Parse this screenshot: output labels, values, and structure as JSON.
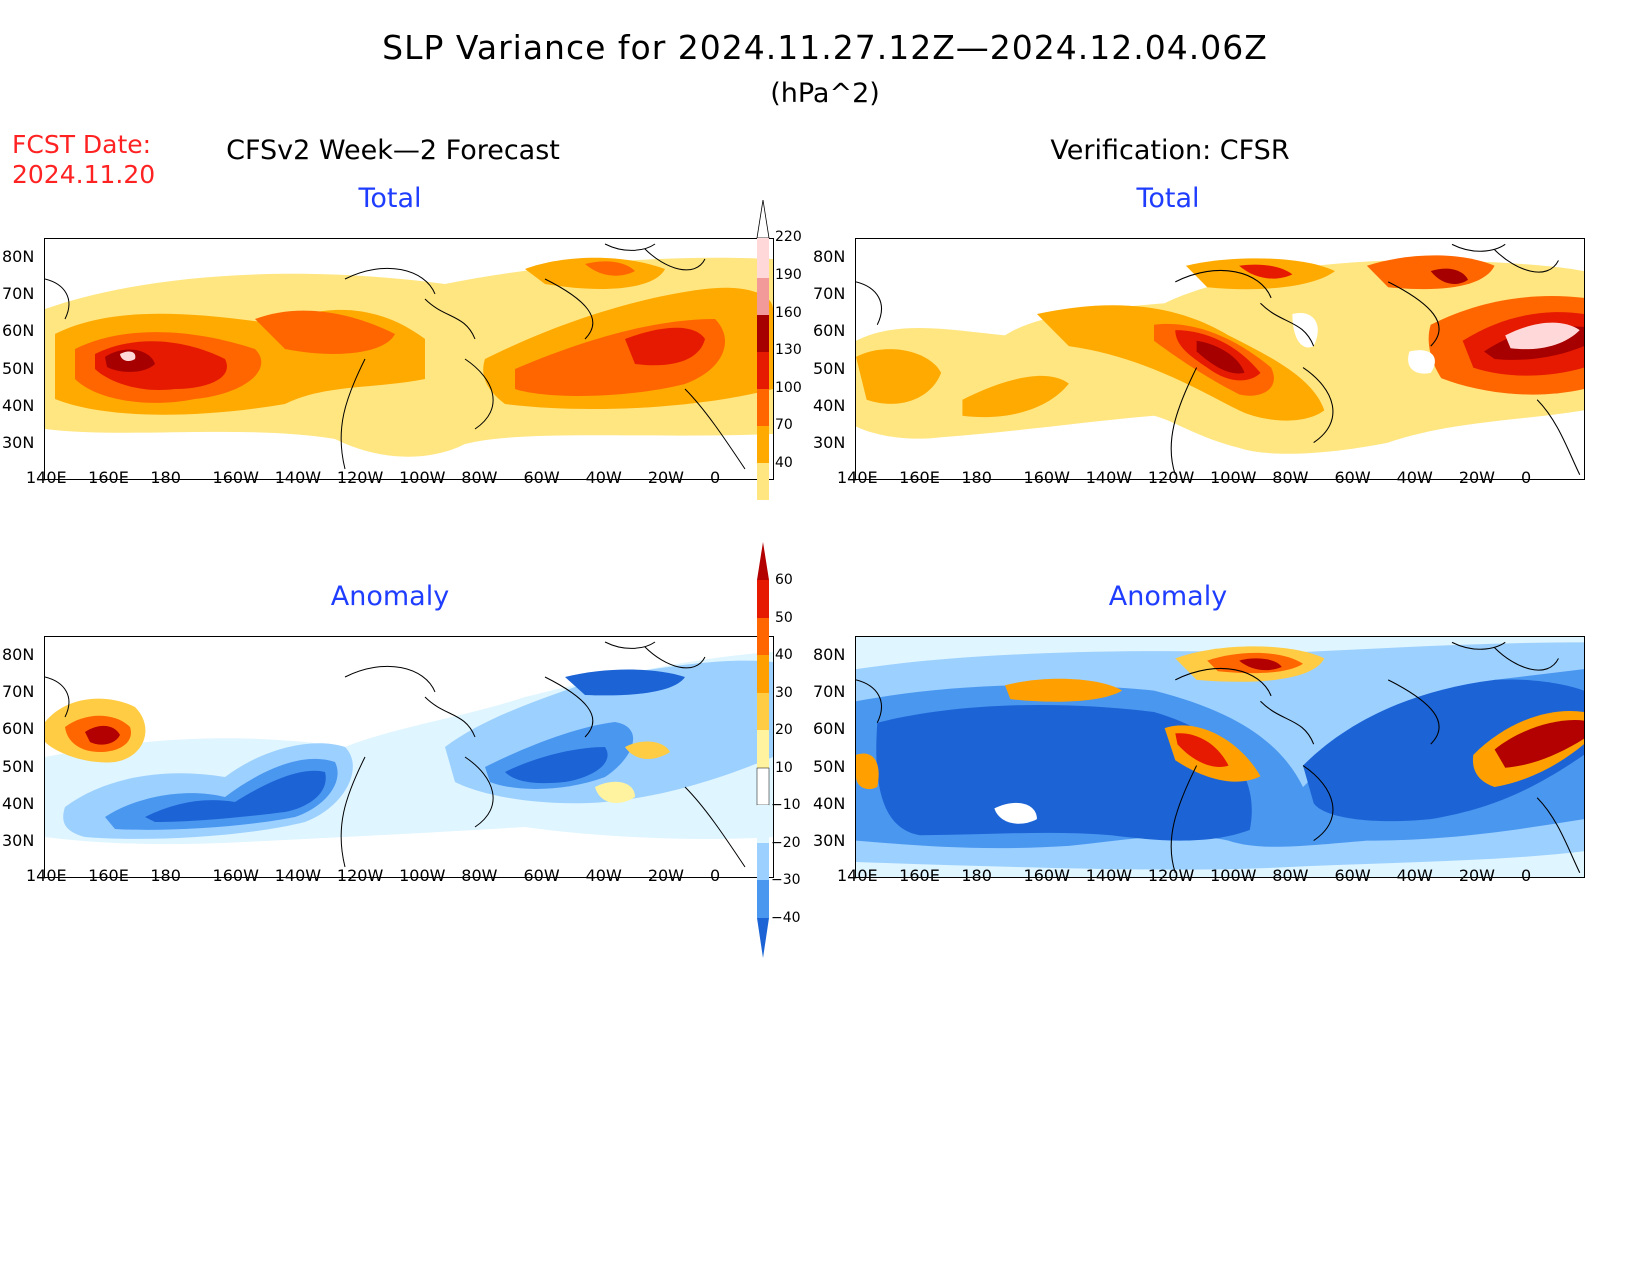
{
  "title": "SLP Variance for 2024.11.27.12Z—2024.12.04.06Z",
  "units": "(hPa^2)",
  "fcst_label": "FCST Date:",
  "fcst_date": "2024.11.20",
  "columns": {
    "left": "CFSv2 Week—2 Forecast",
    "right": "Verification: CFSR"
  },
  "panels": {
    "fcst_total": "Total",
    "verif_total": "Total",
    "fcst_anom": "Anomaly",
    "verif_anom": "Anomaly"
  },
  "lon_ticks": [
    "140E",
    "160E",
    "180",
    "160W",
    "140W",
    "120W",
    "100W",
    "80W",
    "60W",
    "40W",
    "20W",
    "0"
  ],
  "lat_ticks": [
    "80N",
    "70N",
    "60N",
    "50N",
    "40N",
    "30N"
  ],
  "total_colorbar": {
    "levels": [
      "40",
      "70",
      "100",
      "130",
      "160",
      "190",
      "220"
    ],
    "colors": [
      "#ffe680",
      "#ffaa00",
      "#ff6600",
      "#e61a00",
      "#a60000",
      "#f29999",
      "#ffd9d9",
      "#ffffff"
    ]
  },
  "anom_colorbar": {
    "levels": [
      "60",
      "50",
      "40",
      "30",
      "20",
      "10",
      "−10",
      "−20",
      "−30",
      "−40"
    ],
    "colors_top_to_bottom": [
      "#b30000",
      "#e61a00",
      "#ff6600",
      "#ffa000",
      "#ffcc44",
      "#fff3a0",
      "#ffffff",
      "#dff5ff",
      "#9cd0ff",
      "#4a97f0",
      "#1c64d6"
    ]
  },
  "colors": {
    "title_blue": "#1f3dff",
    "fcst_red": "#ff2222"
  }
}
